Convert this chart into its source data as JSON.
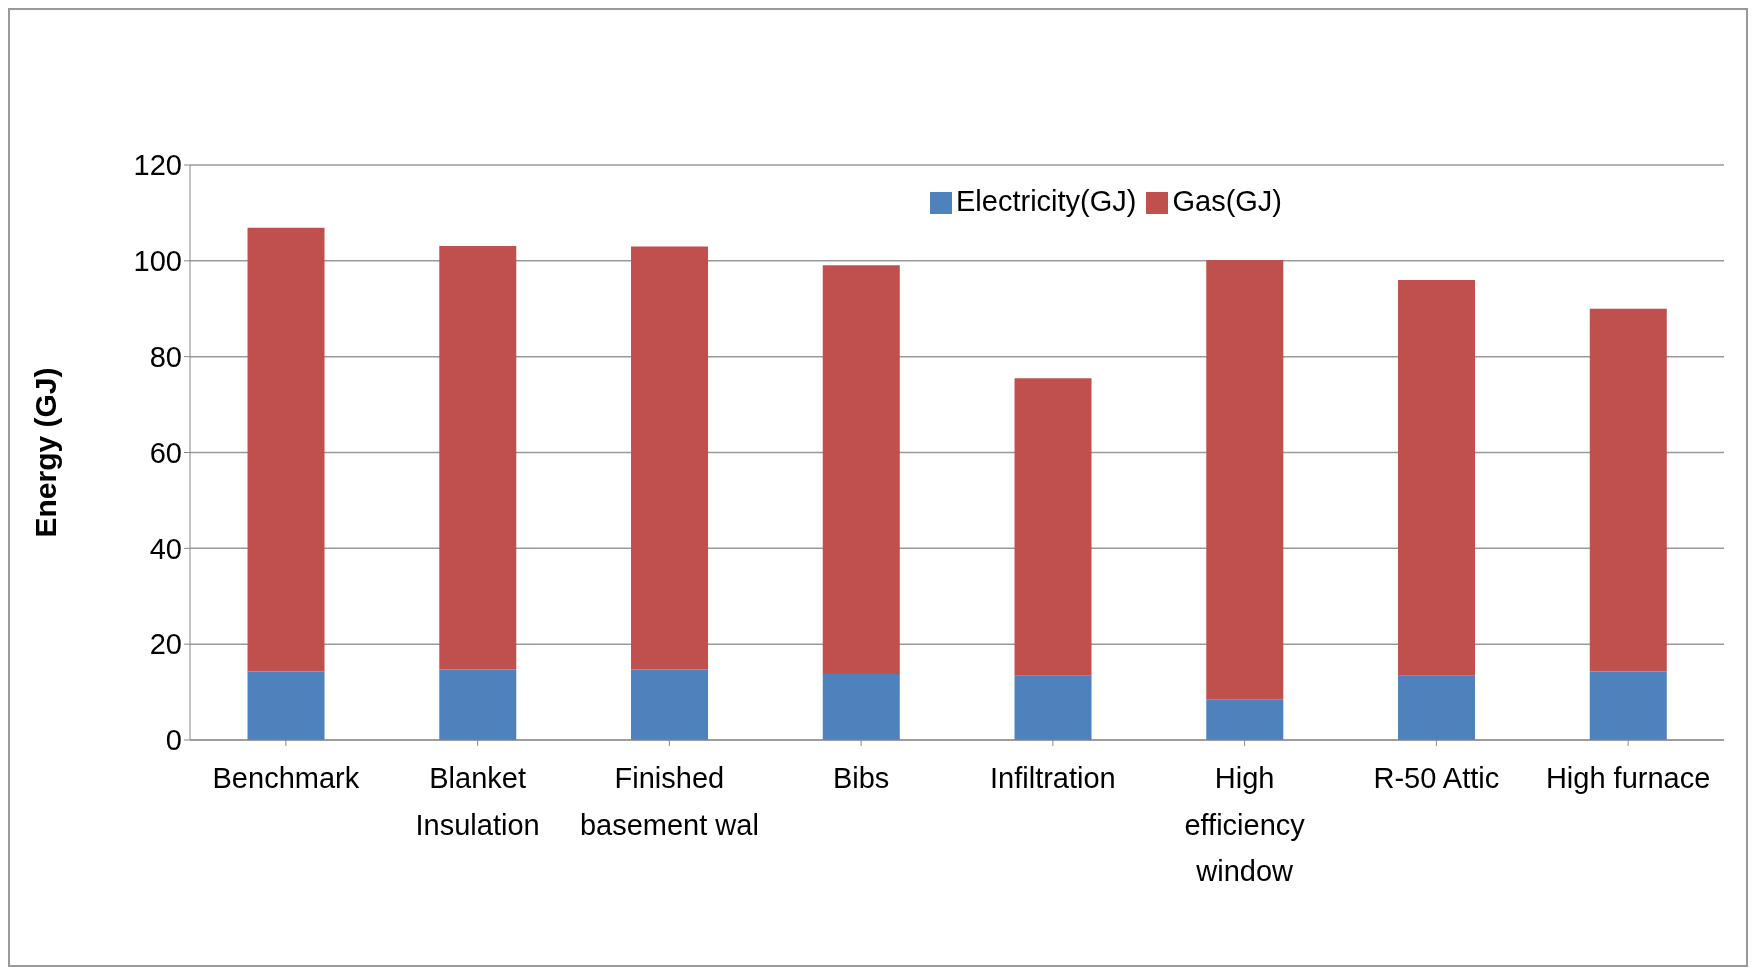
{
  "chart_data": {
    "type": "bar",
    "stacked": true,
    "ylabel": "Energy (GJ)",
    "categories": [
      "Benchmark",
      "Blanket Insulation",
      "Finished basement wal",
      "Bibs",
      "Infiltration",
      "High efficiency window",
      "R-50 Attic",
      "High furnace"
    ],
    "series": [
      {
        "name": "Electricity(GJ)",
        "color": "#4f81bd",
        "values": [
          14.3,
          14.7,
          14.7,
          13.8,
          13.4,
          8.5,
          13.4,
          14.3
        ]
      },
      {
        "name": "Gas(GJ)",
        "color": "#c0504d",
        "values": [
          92.6,
          88.4,
          88.3,
          85.3,
          62.1,
          91.7,
          82.6,
          75.7
        ]
      }
    ],
    "ylim": [
      0,
      120
    ],
    "yticks": [
      0,
      20,
      40,
      60,
      80,
      100,
      120
    ],
    "grid": "y",
    "legend": "top right"
  }
}
